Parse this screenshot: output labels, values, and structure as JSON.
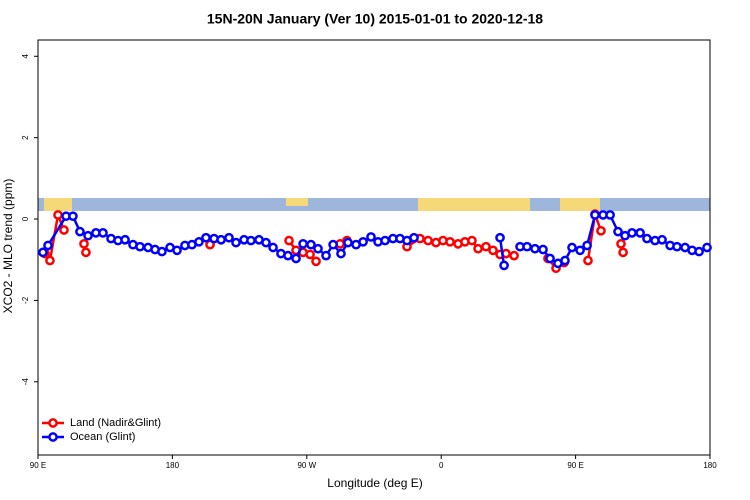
{
  "chart_data": {
    "type": "line",
    "title": "15N-20N January (Ver 10)   2015-01-01 to 2020-12-18",
    "x_label": "Longitude (deg E)",
    "y_label": "XCO2 - MLO trend (ppm)",
    "xlim": [
      90,
      540
    ],
    "ylim": [
      -5.8,
      4.4
    ],
    "xticks": [
      {
        "value": 90,
        "label": "90 E"
      },
      180,
      {
        "value": 270,
        "label": "90 W"
      },
      {
        "value": 360,
        "label": "0"
      },
      {
        "value": 450,
        "label": "90 E"
      },
      {
        "value": 540,
        "label": "180"
      }
    ],
    "yticks": [
      4,
      2,
      0,
      -2,
      -4
    ],
    "legend": "bottom-left",
    "series": [
      {
        "name": "Land (Nadir&Glint)",
        "color": "#ff0000",
        "x": [
          94.7,
          98.0,
          103.4,
          107.4,
          null,
          120.8,
          122.1,
          null,
          205.2,
          null,
          258.1,
          262.8,
          267.5,
          272.2,
          276.2,
          null,
          292.3,
          296.9,
          null,
          337.1,
          345.8,
          351.2,
          356.5,
          361.2,
          365.9,
          371.3,
          375.9,
          380.6,
          384.7,
          390.0,
          394.7,
          399.4,
          403.4,
          408.8,
          null,
          431.5,
          436.9,
          442.3,
          null,
          458.3,
          463.0,
          467.0,
          null,
          480.4,
          481.8
        ],
        "values": [
          -0.85,
          -1.02,
          0.1,
          -0.27,
          null,
          -0.61,
          -0.82,
          null,
          -0.63,
          null,
          -0.53,
          -0.77,
          -0.82,
          -0.87,
          -1.04,
          null,
          -0.61,
          -0.53,
          null,
          -0.68,
          -0.48,
          -0.53,
          -0.58,
          -0.53,
          -0.56,
          -0.61,
          -0.56,
          -0.53,
          -0.73,
          -0.68,
          -0.77,
          -0.87,
          -0.85,
          -0.9,
          null,
          -0.97,
          -1.21,
          -1.07,
          null,
          -1.02,
          0.12,
          -0.29,
          null,
          -0.61,
          -0.82
        ]
      },
      {
        "name": "Ocean (Glint)",
        "color": "#0000ff",
        "x": [
          93.3,
          96.7,
          108.8,
          113.4,
          118.1,
          123.5,
          128.8,
          133.5,
          138.9,
          143.6,
          148.3,
          153.6,
          158.3,
          163.7,
          168.4,
          173.0,
          178.4,
          183.1,
          188.4,
          193.1,
          197.8,
          202.5,
          207.9,
          212.6,
          217.9,
          222.6,
          228.0,
          232.6,
          238.0,
          242.7,
          247.4,
          252.7,
          257.4,
          262.8,
          267.5,
          272.8,
          277.5,
          282.9,
          287.6,
          292.9,
          297.6,
          303.0,
          307.7,
          313.0,
          317.7,
          322.4,
          327.7,
          332.4,
          337.1,
          341.8,
          null,
          399.4,
          402.1,
          null,
          412.8,
          417.5,
          422.8,
          428.2,
          432.9,
          438.2,
          442.9,
          447.6,
          453.0,
          457.7,
          463.0,
          468.4,
          473.1,
          478.4,
          483.1,
          487.8,
          493.2,
          497.8,
          503.2,
          507.9,
          513.3,
          517.9,
          523.3,
          528.0,
          532.7,
          538.0
        ],
        "values": [
          -0.82,
          -0.65,
          0.07,
          0.07,
          -0.31,
          -0.41,
          -0.34,
          -0.34,
          -0.48,
          -0.53,
          -0.51,
          -0.63,
          -0.68,
          -0.7,
          -0.75,
          -0.8,
          -0.7,
          -0.77,
          -0.65,
          -0.63,
          -0.56,
          -0.46,
          -0.48,
          -0.51,
          -0.46,
          -0.58,
          -0.51,
          -0.53,
          -0.51,
          -0.58,
          -0.7,
          -0.85,
          -0.9,
          -0.97,
          -0.61,
          -0.63,
          -0.73,
          -0.9,
          -0.63,
          -0.85,
          -0.58,
          -0.63,
          -0.56,
          -0.44,
          -0.56,
          -0.53,
          -0.48,
          -0.48,
          -0.53,
          -0.46,
          null,
          -0.46,
          -1.14,
          null,
          -0.68,
          -0.68,
          -0.73,
          -0.75,
          -0.97,
          -1.09,
          -1.02,
          -0.7,
          -0.77,
          -0.65,
          0.1,
          0.1,
          0.1,
          -0.31,
          -0.41,
          -0.34,
          -0.34,
          -0.48,
          -0.53,
          -0.51,
          -0.65,
          -0.68,
          -0.7,
          -0.77,
          -0.8,
          -0.7
        ]
      }
    ]
  }
}
